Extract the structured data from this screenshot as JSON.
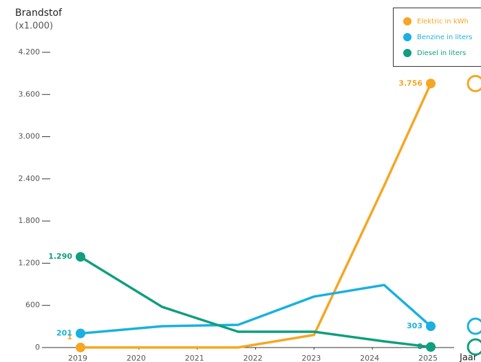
{
  "chart_data": {
    "type": "line",
    "title": "Brandstof",
    "subtitle": "(x1.000)",
    "x_label": "Jaar",
    "xlim": [
      2019,
      2025
    ],
    "xticks": [
      2019,
      2020,
      2021,
      2022,
      2023,
      2024,
      2025
    ],
    "ylim": [
      0,
      4200
    ],
    "yticks": [
      0,
      600,
      {
        "value": 1200,
        "label": "1.200"
      },
      {
        "value": 1800,
        "label": "1.800"
      },
      {
        "value": 2400,
        "label": "2.400"
      },
      {
        "value": 3000,
        "label": "3.000"
      },
      {
        "value": 3600,
        "label": "3.600"
      },
      {
        "value": 4200,
        "label": "4.200"
      }
    ],
    "legend": "top-right",
    "series": [
      {
        "name": "Elektric in kWh",
        "color": "#f5a623",
        "x": [
          2019,
          2021.7,
          2023,
          2024.2,
          2025
        ],
        "values": [
          1,
          1,
          180,
          2300,
          3756
        ],
        "value_labels": [
          "1",
          null,
          null,
          null,
          "3.756"
        ]
      },
      {
        "name": "Benzine in liters",
        "color": "#1ab0e0",
        "x": [
          2019,
          2020.4,
          2021.7,
          2023,
          2024.2,
          2025
        ],
        "values": [
          201,
          304,
          323,
          725,
          890,
          303
        ],
        "value_labels": [
          "201",
          null,
          null,
          null,
          null,
          "303"
        ]
      },
      {
        "name": "Diesel in liters",
        "color": "#0f9e7e",
        "x": [
          2019,
          2020.4,
          2021.7,
          2023,
          2024.2,
          2025
        ],
        "values": [
          1290,
          578,
          225,
          225,
          88,
          8
        ],
        "value_labels": [
          "1.290",
          null,
          null,
          null,
          null,
          "8"
        ]
      }
    ]
  }
}
